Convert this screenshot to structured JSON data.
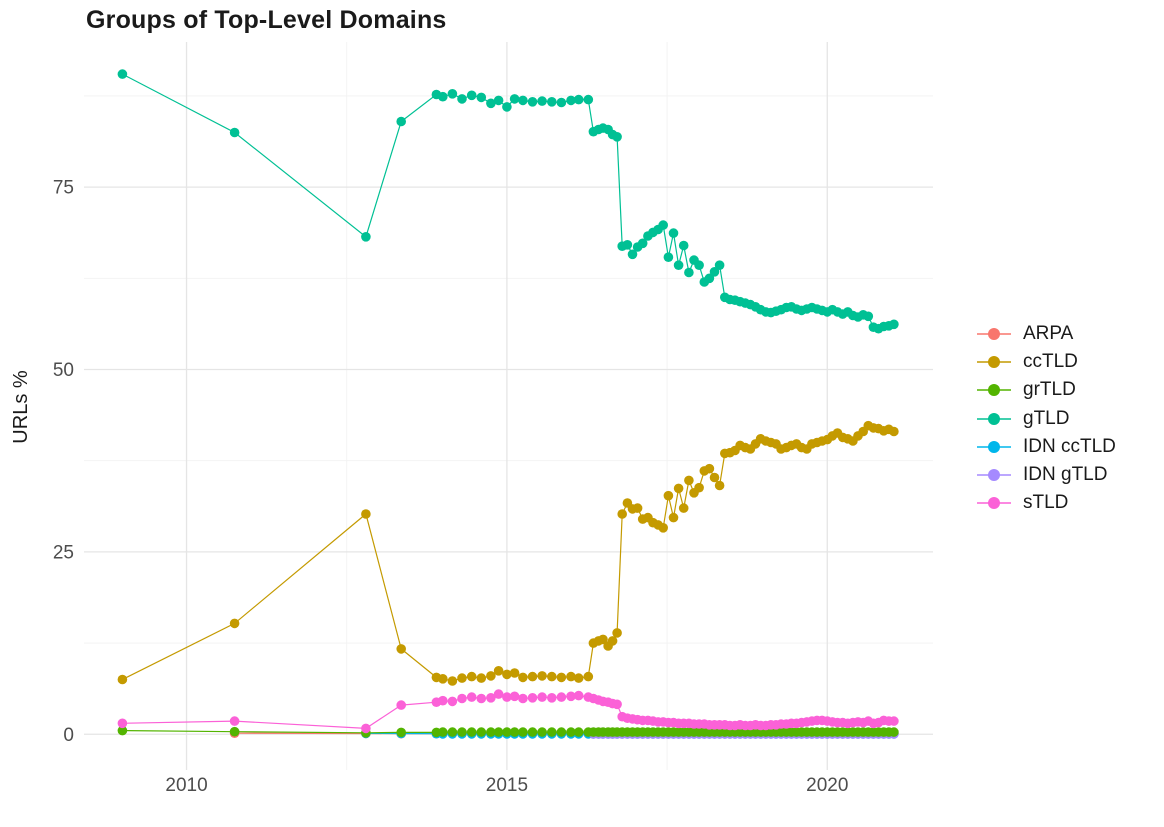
{
  "chart_data": {
    "type": "line",
    "title": "Groups of Top-Level Domains",
    "xlabel": "",
    "ylabel": "URLs %",
    "legend_position": "right",
    "grid": true,
    "xlim": [
      2008.4,
      2021.65
    ],
    "ylim": [
      -4.9,
      94.9
    ],
    "x_ticks_major": [
      2010,
      2015,
      2020
    ],
    "x_ticks_minor": [
      2012.5,
      2017.5
    ],
    "y_ticks_major": [
      0,
      25,
      50,
      75
    ],
    "y_ticks_minor": [
      12.5,
      37.5,
      62.5,
      87.5
    ],
    "grid_major_color": "#e5e5e5",
    "grid_minor_color": "#f2f2f2",
    "tick_label_color": "#4d4d4d",
    "x_grid": [
      2009.0,
      2010.75,
      2012.8,
      2013.35,
      2013.9,
      2014.0,
      2014.15,
      2014.3,
      2014.45,
      2014.6,
      2014.75,
      2014.87,
      2015.0,
      2015.12,
      2015.25,
      2015.4,
      2015.55,
      2015.7,
      2015.85,
      2016.0,
      2016.12,
      2016.27,
      2016.35,
      2016.43,
      2016.5,
      2016.58,
      2016.65,
      2016.72,
      2016.8,
      2016.88,
      2016.96,
      2017.04,
      2017.12,
      2017.2,
      2017.28,
      2017.36,
      2017.44,
      2017.52,
      2017.6,
      2017.68,
      2017.76,
      2017.84,
      2017.92,
      2018.0,
      2018.08,
      2018.16,
      2018.24,
      2018.32,
      2018.4,
      2018.48,
      2018.56,
      2018.64,
      2018.72,
      2018.8,
      2018.88,
      2018.96,
      2019.04,
      2019.12,
      2019.2,
      2019.28,
      2019.36,
      2019.44,
      2019.52,
      2019.6,
      2019.68,
      2019.76,
      2019.84,
      2019.92,
      2020.0,
      2020.08,
      2020.16,
      2020.24,
      2020.32,
      2020.4,
      2020.48,
      2020.56,
      2020.64,
      2020.72,
      2020.8,
      2020.88,
      2020.96,
      2021.04
    ],
    "draw_order": [
      "ARPA",
      "IDN ccTLD",
      "IDN gTLD",
      "grTLD",
      "ccTLD",
      "gTLD",
      "sTLD"
    ],
    "series": [
      {
        "name": "ARPA",
        "color": "#F8766D",
        "x_start": 1,
        "y_prefix": [
          0.15,
          0.1,
          0.08
        ],
        "y_fill": 0.08
      },
      {
        "name": "ccTLD",
        "color": "#C49A00",
        "x_start": 0,
        "y": [
          7.5,
          15.2,
          30.2,
          11.7,
          7.8,
          7.6,
          7.3,
          7.7,
          7.9,
          7.7,
          8.0,
          8.7,
          8.2,
          8.4,
          7.8,
          7.9,
          8.0,
          7.9,
          7.8,
          7.9,
          7.7,
          7.9,
          12.5,
          12.8,
          13.0,
          12.1,
          12.8,
          13.9,
          30.2,
          31.7,
          30.9,
          31.0,
          29.5,
          29.7,
          29.0,
          28.7,
          28.3,
          32.7,
          29.7,
          33.7,
          31.0,
          34.8,
          33.1,
          33.8,
          36.1,
          36.4,
          35.2,
          34.1,
          38.5,
          38.6,
          38.9,
          39.6,
          39.3,
          39.1,
          39.8,
          40.5,
          40.2,
          40.0,
          39.8,
          39.1,
          39.3,
          39.6,
          39.8,
          39.3,
          39.1,
          39.8,
          40.0,
          40.2,
          40.4,
          40.9,
          41.3,
          40.7,
          40.5,
          40.2,
          40.9,
          41.5,
          42.3,
          42.0,
          41.9,
          41.6,
          41.8,
          41.5
        ]
      },
      {
        "name": "grTLD",
        "color": "#53B400",
        "x_start": 0,
        "y_prefix": [
          0.5,
          0.35,
          0.2,
          0.25,
          0.25
        ],
        "y_fill": 0.3
      },
      {
        "name": "gTLD",
        "color": "#00C094",
        "x_start": 0,
        "y": [
          90.5,
          82.5,
          68.2,
          84.0,
          87.7,
          87.4,
          87.8,
          87.1,
          87.6,
          87.3,
          86.5,
          86.9,
          86.0,
          87.1,
          86.9,
          86.7,
          86.8,
          86.7,
          86.6,
          86.9,
          87.0,
          87.0,
          82.6,
          82.9,
          83.1,
          82.9,
          82.2,
          81.9,
          66.9,
          67.1,
          65.8,
          66.8,
          67.3,
          68.3,
          68.8,
          69.2,
          69.8,
          65.4,
          68.7,
          64.3,
          67.0,
          63.3,
          65.0,
          64.3,
          62.0,
          62.5,
          63.4,
          64.3,
          59.9,
          59.6,
          59.5,
          59.3,
          59.1,
          58.9,
          58.6,
          58.2,
          57.9,
          57.8,
          58.0,
          58.2,
          58.5,
          58.6,
          58.3,
          58.1,
          58.3,
          58.5,
          58.3,
          58.1,
          57.9,
          58.2,
          57.9,
          57.6,
          57.9,
          57.4,
          57.2,
          57.5,
          57.3,
          55.8,
          55.6,
          55.9,
          56.0,
          56.2
        ]
      },
      {
        "name": "IDN ccTLD",
        "color": "#00B6EB",
        "x_start": 2,
        "y_prefix": [
          0.12,
          0.1,
          0.08
        ],
        "y_fill": 0.05
      },
      {
        "name": "IDN gTLD",
        "color": "#A58AFF",
        "x_start": 22,
        "y_prefix": [],
        "y_fill": 0.03
      },
      {
        "name": "sTLD",
        "color": "#FB61D7",
        "x_start": 0,
        "y": [
          1.5,
          1.8,
          0.8,
          4.0,
          4.4,
          4.6,
          4.5,
          4.9,
          5.1,
          4.9,
          5.0,
          5.5,
          5.1,
          5.2,
          4.9,
          5.0,
          5.1,
          5.0,
          5.1,
          5.2,
          5.3,
          5.1,
          4.9,
          4.7,
          4.5,
          4.4,
          4.2,
          4.1,
          2.4,
          2.2,
          2.1,
          2.0,
          1.9,
          1.9,
          1.8,
          1.7,
          1.7,
          1.6,
          1.6,
          1.5,
          1.5,
          1.5,
          1.4,
          1.4,
          1.4,
          1.3,
          1.3,
          1.3,
          1.3,
          1.2,
          1.2,
          1.3,
          1.2,
          1.2,
          1.3,
          1.2,
          1.2,
          1.3,
          1.3,
          1.4,
          1.4,
          1.5,
          1.5,
          1.6,
          1.7,
          1.8,
          1.9,
          1.9,
          1.8,
          1.7,
          1.6,
          1.6,
          1.5,
          1.6,
          1.7,
          1.6,
          1.8,
          1.5,
          1.6,
          1.9,
          1.8,
          1.8
        ]
      }
    ]
  }
}
